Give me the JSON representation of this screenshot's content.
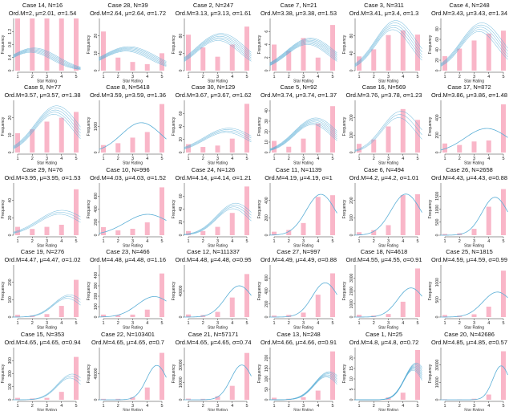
{
  "figure": {
    "xlabel": "Star Rating",
    "ylabel": "Frequency",
    "bar_color": "#f9b6c8",
    "curve_color": "#5aaed6"
  },
  "chart_data": [
    {
      "type": "bar",
      "title": "Case 14, N=16",
      "subtitle": "Ord.M=2, μ=2.01, σ=1.54",
      "categories": [
        "1",
        "2",
        "3",
        "4",
        "5"
      ],
      "values": [
        6,
        3,
        2,
        2,
        3
      ],
      "ylim": [
        0,
        1.4
      ],
      "yticks": [
        "0",
        "0.4",
        "0.8",
        "1.2"
      ],
      "yscale": 0.1667,
      "curve": {
        "mu": 2.01,
        "sigma": 1.54,
        "peak": 0.55,
        "band": 6
      },
      "xlabel": "Star Rating",
      "ylabel": "Frequency"
    },
    {
      "type": "bar",
      "title": "Case 28, N=39",
      "subtitle": "Ord.M=2.64, μ=2.64, σ=1.72",
      "categories": [
        "1",
        "2",
        "3",
        "4",
        "5"
      ],
      "values": [
        18,
        6,
        4,
        3,
        8
      ],
      "ylim": [
        0,
        24
      ],
      "yticks": [
        "0",
        "10",
        "20"
      ],
      "yscale": 1,
      "curve": {
        "mu": 2.64,
        "sigma": 1.72,
        "peak": 10,
        "band": 6
      },
      "xlabel": "Star Rating",
      "ylabel": "Frequency"
    },
    {
      "type": "bar",
      "title": "Case 2, N=247",
      "subtitle": "Ord.M=3.13, μ=3.13, σ=1.61",
      "categories": [
        "1",
        "2",
        "3",
        "4",
        "5"
      ],
      "values": [
        62,
        40,
        24,
        45,
        76
      ],
      "ylim": [
        0,
        90
      ],
      "yticks": [
        "0",
        "40",
        "80"
      ],
      "yscale": 1,
      "curve": {
        "mu": 3.13,
        "sigma": 1.61,
        "peak": 58,
        "band": 6
      },
      "xlabel": "Star Rating",
      "ylabel": "Frequency"
    },
    {
      "type": "bar",
      "title": "Case 7, N=21",
      "subtitle": "Ord.M=3.38, μ=3.38, σ=1.53",
      "categories": [
        "1",
        "2",
        "3",
        "4",
        "5"
      ],
      "values": [
        4,
        3,
        5,
        2,
        7
      ],
      "ylim": [
        0,
        8
      ],
      "yticks": [
        "0",
        "2",
        "4",
        "6"
      ],
      "yscale": 1,
      "curve": {
        "mu": 3.38,
        "sigma": 1.53,
        "peak": 4.5,
        "band": 7
      },
      "xlabel": "Star Rating",
      "ylabel": "Frequency"
    },
    {
      "type": "bar",
      "title": "Case 3, N=311",
      "subtitle": "Ord.M=3.41, μ=3.4, σ=1.3",
      "categories": [
        "1",
        "2",
        "3",
        "4",
        "5"
      ],
      "values": [
        30,
        45,
        75,
        85,
        76
      ],
      "ylim": [
        0,
        110
      ],
      "yticks": [
        "0",
        "40",
        "80"
      ],
      "yscale": 1,
      "curve": {
        "mu": 3.4,
        "sigma": 1.3,
        "peak": 96,
        "band": 5
      },
      "xlabel": "Star Rating",
      "ylabel": "Frequency"
    },
    {
      "type": "bar",
      "title": "Case 4, N=248",
      "subtitle": "Ord.M=3.43, μ=3.43, σ=1.34",
      "categories": [
        "1",
        "2",
        "3",
        "4",
        "5"
      ],
      "values": [
        25,
        38,
        52,
        64,
        69
      ],
      "ylim": [
        0,
        90
      ],
      "yticks": [
        "0",
        "20",
        "40",
        "60",
        "80"
      ],
      "yscale": 1,
      "curve": {
        "mu": 3.43,
        "sigma": 1.34,
        "peak": 75,
        "band": 5
      },
      "xlabel": "Star Rating",
      "ylabel": "Frequency"
    },
    {
      "type": "bar",
      "title": "Case 9, N=77",
      "subtitle": "Ord.M=3.57, μ=3.57, σ=1.38",
      "categories": [
        "1",
        "2",
        "3",
        "4",
        "5"
      ],
      "values": [
        10,
        12,
        16,
        18,
        21
      ],
      "ylim": [
        0,
        27
      ],
      "yticks": [
        "0",
        "10",
        "20"
      ],
      "yscale": 1,
      "curve": {
        "mu": 3.57,
        "sigma": 1.38,
        "peak": 22,
        "band": 5
      },
      "xlabel": "Star Rating",
      "ylabel": "Frequency"
    },
    {
      "type": "bar",
      "title": "Case 8, N=5418",
      "subtitle": "Ord.M=3.59, μ=3.59, σ=1.36",
      "categories": [
        "1",
        "2",
        "3",
        "4",
        "5"
      ],
      "values": [
        400,
        500,
        800,
        1100,
        2600
      ],
      "ylim": [
        0,
        2800
      ],
      "yticks": [
        "0",
        "1000"
      ],
      "yscale": 1,
      "curve": {
        "mu": 3.59,
        "sigma": 1.36,
        "peak": 1600,
        "band": 0
      },
      "xlabel": "Star Rating",
      "ylabel": "Frequency"
    },
    {
      "type": "bar",
      "title": "Case 30, N=129",
      "subtitle": "Ord.M=3.67, μ=3.67, σ=1.62",
      "categories": [
        "1",
        "2",
        "3",
        "4",
        "5"
      ],
      "values": [
        12,
        8,
        10,
        20,
        70
      ],
      "ylim": [
        0,
        75
      ],
      "yticks": [
        "0",
        "20",
        "40",
        "60"
      ],
      "yscale": 1,
      "curve": {
        "mu": 3.67,
        "sigma": 1.62,
        "peak": 32,
        "band": 4
      },
      "xlabel": "Star Rating",
      "ylabel": "Frequency"
    },
    {
      "type": "bar",
      "title": "Case 5, N=92",
      "subtitle": "Ord.M=3.74, μ=3.74, σ=1.37",
      "categories": [
        "1",
        "2",
        "3",
        "4",
        "5"
      ],
      "values": [
        10,
        5,
        12,
        25,
        40
      ],
      "ylim": [
        0,
        45
      ],
      "yticks": [
        "0",
        "10",
        "20",
        "30",
        "40"
      ],
      "yscale": 1,
      "curve": {
        "mu": 3.74,
        "sigma": 1.37,
        "peak": 27,
        "band": 6
      },
      "xlabel": "Star Rating",
      "ylabel": "Frequency"
    },
    {
      "type": "bar",
      "title": "Case 16, N=569",
      "subtitle": "Ord.M=3.76, μ=3.78, σ=1.23",
      "categories": [
        "1",
        "2",
        "3",
        "4",
        "5"
      ],
      "values": [
        40,
        60,
        120,
        200,
        150
      ],
      "ylim": [
        0,
        240
      ],
      "yticks": [
        "0",
        "100",
        "200"
      ],
      "yscale": 1,
      "curve": {
        "mu": 3.78,
        "sigma": 1.23,
        "peak": 175,
        "band": 3
      },
      "xlabel": "Star Rating",
      "ylabel": "Frequency"
    },
    {
      "type": "bar",
      "title": "Case 17, N=872",
      "subtitle": "Ord.M=3.86, μ=3.86, σ=1.48",
      "categories": [
        "1",
        "2",
        "3",
        "4",
        "5"
      ],
      "values": [
        90,
        75,
        110,
        120,
        480
      ],
      "ylim": [
        0,
        520
      ],
      "yticks": [
        "0",
        "200",
        "400"
      ],
      "yscale": 1,
      "curve": {
        "mu": 3.86,
        "sigma": 1.48,
        "peak": 240,
        "band": 0
      },
      "xlabel": "Star Rating",
      "ylabel": "Frequency"
    },
    {
      "type": "bar",
      "title": "Case 29, N=76",
      "subtitle": "Ord.M=3.95, μ=3.95, σ=1.53",
      "categories": [
        "1",
        "2",
        "3",
        "4",
        "5"
      ],
      "values": [
        8,
        6,
        8,
        10,
        44
      ],
      "ylim": [
        0,
        50
      ],
      "yticks": [
        "0",
        "20",
        "40"
      ],
      "yscale": 1,
      "curve": {
        "mu": 3.95,
        "sigma": 1.53,
        "peak": 22,
        "band": 3
      },
      "xlabel": "Star Rating",
      "ylabel": "Frequency"
    },
    {
      "type": "bar",
      "title": "Case 10, N=996",
      "subtitle": "Ord.M=4.03, μ=4.03, σ=1.52",
      "categories": [
        "1",
        "2",
        "3",
        "4",
        "5"
      ],
      "values": [
        100,
        60,
        80,
        160,
        596
      ],
      "ylim": [
        0,
        650
      ],
      "yticks": [
        "0",
        "200",
        "400",
        "600"
      ],
      "yscale": 1,
      "curve": {
        "mu": 4.03,
        "sigma": 1.52,
        "peak": 260,
        "band": 0
      },
      "xlabel": "Star Rating",
      "ylabel": "Frequency"
    },
    {
      "type": "bar",
      "title": "Case 24, N=126",
      "subtitle": "Ord.M=4.14, μ=4.14, σ=1.21",
      "categories": [
        "1",
        "2",
        "3",
        "4",
        "5"
      ],
      "values": [
        6,
        6,
        12,
        32,
        70
      ],
      "ylim": [
        0,
        75
      ],
      "yticks": [
        "0",
        "20",
        "40",
        "60"
      ],
      "yscale": 1,
      "curve": {
        "mu": 4.14,
        "sigma": 1.21,
        "peak": 42,
        "band": 4
      },
      "xlabel": "Star Rating",
      "ylabel": "Frequency"
    },
    {
      "type": "bar",
      "title": "Case 11, N=1139",
      "subtitle": "Ord.M=4.19, μ=4.19, σ=1",
      "categories": [
        "1",
        "2",
        "3",
        "4",
        "5"
      ],
      "values": [
        40,
        60,
        140,
        440,
        460
      ],
      "ylim": [
        0,
        600
      ],
      "yticks": [
        "0",
        "200",
        "400"
      ],
      "yscale": 1,
      "curve": {
        "mu": 4.19,
        "sigma": 1,
        "peak": 470,
        "band": 0
      },
      "xlabel": "Star Rating",
      "ylabel": "Frequency"
    },
    {
      "type": "bar",
      "title": "Case 6, N=494",
      "subtitle": "Ord.M=4.2, μ=4.2, σ=1.01",
      "categories": [
        "1",
        "2",
        "3",
        "4",
        "5"
      ],
      "values": [
        15,
        25,
        50,
        200,
        204
      ],
      "ylim": [
        0,
        260
      ],
      "yticks": [
        "0",
        "100",
        "200"
      ],
      "yscale": 1,
      "curve": {
        "mu": 4.2,
        "sigma": 1.01,
        "peak": 205,
        "band": 0
      },
      "xlabel": "Star Rating",
      "ylabel": "Frequency"
    },
    {
      "type": "bar",
      "title": "Case 26, N=2658",
      "subtitle": "Ord.M=4.43, μ=4.43, σ=0.88",
      "categories": [
        "1",
        "2",
        "3",
        "4",
        "5"
      ],
      "values": [
        40,
        60,
        200,
        900,
        1458
      ],
      "ylim": [
        0,
        1650
      ],
      "yticks": [
        "0",
        "500",
        "1000",
        "1500"
      ],
      "yscale": 1,
      "curve": {
        "mu": 4.43,
        "sigma": 0.88,
        "peak": 1200,
        "band": 0
      },
      "xlabel": "Star Rating",
      "ylabel": "Frequency"
    },
    {
      "type": "bar",
      "title": "Case 19, N=276",
      "subtitle": "Ord.M=4.47, μ=4.47, σ=1.02",
      "categories": [
        "1",
        "2",
        "3",
        "4",
        "5"
      ],
      "values": [
        12,
        8,
        16,
        60,
        200
      ],
      "ylim": [
        0,
        280
      ],
      "yticks": [
        "0",
        "100",
        "200"
      ],
      "yscale": 1,
      "curve": {
        "mu": 4.47,
        "sigma": 1.02,
        "peak": 110,
        "band": 3
      },
      "xlabel": "Star Rating",
      "ylabel": "Frequency"
    },
    {
      "type": "bar",
      "title": "Case 23, N=466",
      "subtitle": "Ord.M=4.48, μ=4.48, σ=1.16",
      "categories": [
        "1",
        "2",
        "3",
        "4",
        "5"
      ],
      "values": [
        20,
        15,
        20,
        60,
        351
      ],
      "ylim": [
        0,
        420
      ],
      "yticks": [
        "0",
        "100",
        "200",
        "300",
        "400"
      ],
      "yscale": 1,
      "curve": {
        "mu": 4.48,
        "sigma": 1.16,
        "peak": 165,
        "band": 0
      },
      "xlabel": "Star Rating",
      "ylabel": "Frequency"
    },
    {
      "type": "bar",
      "title": "Case 12, N=111337",
      "subtitle": "Ord.M=4.48, μ=4.48, σ=0.95",
      "categories": [
        "1",
        "2",
        "3",
        "4",
        "5"
      ],
      "values": [
        4000,
        3000,
        8000,
        30000,
        66000
      ],
      "ylim": [
        0,
        80000
      ],
      "yticks": [
        "0",
        "40000"
      ],
      "yscale": 1,
      "curve": {
        "mu": 4.48,
        "sigma": 0.95,
        "peak": 48000,
        "band": 0
      },
      "xlabel": "Star Rating",
      "ylabel": "Frequency"
    },
    {
      "type": "bar",
      "title": "Case 27, N=997",
      "subtitle": "Ord.M=4.49, μ=4.49, σ=0.88",
      "categories": [
        "1",
        "2",
        "3",
        "4",
        "5"
      ],
      "values": [
        20,
        30,
        60,
        300,
        587
      ],
      "ylim": [
        0,
        700
      ],
      "yticks": [
        "0",
        "200",
        "400",
        "600"
      ],
      "yscale": 1,
      "curve": {
        "mu": 4.49,
        "sigma": 0.88,
        "peak": 460,
        "band": 0
      },
      "xlabel": "Star Rating",
      "ylabel": "Frequency"
    },
    {
      "type": "bar",
      "title": "Case 18, N=4618",
      "subtitle": "Ord.M=4.55, μ=4.55, σ=0.91",
      "categories": [
        "1",
        "2",
        "3",
        "4",
        "5"
      ],
      "values": [
        150,
        100,
        200,
        1000,
        3168
      ],
      "ylim": [
        0,
        3400
      ],
      "yticks": [
        "0",
        "1000",
        "2000",
        "3000"
      ],
      "yscale": 1,
      "curve": {
        "mu": 4.55,
        "sigma": 0.91,
        "peak": 1900,
        "band": 0
      },
      "xlabel": "Star Rating",
      "ylabel": "Frequency"
    },
    {
      "type": "bar",
      "title": "Case 25, N=1815",
      "subtitle": "Ord.M=4.59, μ=4.59, σ=0.99",
      "categories": [
        "1",
        "2",
        "3",
        "4",
        "5"
      ],
      "values": [
        60,
        40,
        80,
        300,
        1335
      ],
      "ylim": [
        0,
        1500
      ],
      "yticks": [
        "0",
        "500",
        "1000"
      ],
      "yscale": 1,
      "curve": {
        "mu": 4.59,
        "sigma": 0.99,
        "peak": 720,
        "band": 0
      },
      "xlabel": "Star Rating",
      "ylabel": "Frequency"
    },
    {
      "type": "bar",
      "title": "Case 15, N=353",
      "subtitle": "Ord.M=4.65, μ=4.65, σ=0.94",
      "categories": [
        "1",
        "2",
        "3",
        "4",
        "5"
      ],
      "values": [
        12,
        8,
        12,
        50,
        271
      ],
      "ylim": [
        0,
        330
      ],
      "yticks": [
        "0",
        "100",
        "200",
        "300"
      ],
      "yscale": 1,
      "curve": {
        "mu": 4.65,
        "sigma": 0.94,
        "peak": 150,
        "band": 3
      },
      "xlabel": "Star Rating",
      "ylabel": "Frequency"
    },
    {
      "type": "bar",
      "title": "Case 22, N=103401",
      "subtitle": "Ord.M=4.65, μ=4.65, σ=0.7",
      "categories": [
        "1",
        "2",
        "3",
        "4",
        "5"
      ],
      "values": [
        1500,
        1500,
        4000,
        20000,
        76401
      ],
      "ylim": [
        0,
        85000
      ],
      "yticks": [
        "0",
        "40000"
      ],
      "yscale": 1,
      "curve": {
        "mu": 4.65,
        "sigma": 0.7,
        "peak": 56000,
        "band": 0
      },
      "xlabel": "Star Rating",
      "ylabel": "Frequency"
    },
    {
      "type": "bar",
      "title": "Case 21, N=57171",
      "subtitle": "Ord.M=4.65, μ=4.65, σ=0.74",
      "categories": [
        "1",
        "2",
        "3",
        "4",
        "5"
      ],
      "values": [
        1000,
        800,
        3000,
        12000,
        40371
      ],
      "ylim": [
        0,
        45000
      ],
      "yticks": [
        "0",
        "10000",
        "30000"
      ],
      "yscale": 1,
      "curve": {
        "mu": 4.65,
        "sigma": 0.74,
        "peak": 30000,
        "band": 0
      },
      "xlabel": "Star Rating",
      "ylabel": "Frequency"
    },
    {
      "type": "bar",
      "title": "Case 13, N=248",
      "subtitle": "Ord.M=4.66, μ=4.66, σ=0.91",
      "categories": [
        "1",
        "2",
        "3",
        "4",
        "5"
      ],
      "values": [
        8,
        4,
        10,
        36,
        190
      ],
      "ylim": [
        0,
        205
      ],
      "yticks": [
        "0",
        "50",
        "100",
        "150",
        "200"
      ],
      "yscale": 1,
      "curve": {
        "mu": 4.66,
        "sigma": 0.91,
        "peak": 100,
        "band": 6
      },
      "xlabel": "Star Rating",
      "ylabel": "Frequency"
    },
    {
      "type": "bar",
      "title": "Case 1, N=25",
      "subtitle": "Ord.M=4.8, μ=4.8, σ=0.72",
      "categories": [
        "1",
        "2",
        "3",
        "4",
        "5"
      ],
      "values": [
        0,
        0,
        1,
        3,
        21
      ],
      "ylim": [
        0,
        22
      ],
      "yticks": [
        "0",
        "5",
        "10",
        "15",
        "20"
      ],
      "yscale": 1,
      "curve": {
        "mu": 4.8,
        "sigma": 0.72,
        "peak": 14,
        "band": 8
      },
      "xlabel": "Star Rating",
      "ylabel": "Frequency"
    },
    {
      "type": "bar",
      "title": "Case 20, N=42686",
      "subtitle": "Ord.M=4.85, μ=4.85, σ=0.57",
      "categories": [
        "1",
        "2",
        "3",
        "4",
        "5"
      ],
      "values": [
        400,
        300,
        800,
        4000,
        37186
      ],
      "ylim": [
        0,
        40000
      ],
      "yticks": [
        "0",
        "10000",
        "30000"
      ],
      "yscale": 1,
      "curve": {
        "mu": 4.85,
        "sigma": 0.57,
        "peak": 26000,
        "band": 0
      },
      "xlabel": "Star Rating",
      "ylabel": "Frequency"
    }
  ]
}
